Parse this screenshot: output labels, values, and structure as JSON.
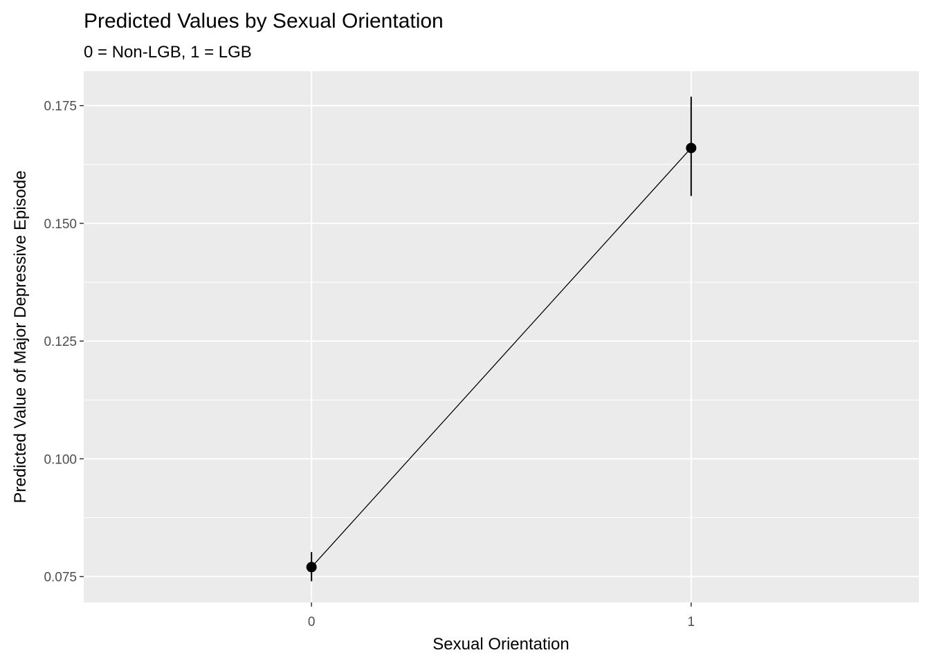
{
  "chart_data": {
    "type": "line",
    "title": "Predicted Values by Sexual Orientation",
    "subtitle": "0 = Non-LGB, 1 = LGB",
    "xlabel": "Sexual Orientation",
    "ylabel": "Predicted Value of Major Depressive Episode",
    "x_ticks": [
      "0",
      "1"
    ],
    "y_ticks": [
      "0.075",
      "0.100",
      "0.125",
      "0.150",
      "0.175"
    ],
    "xlim": [
      -0.6,
      1.6
    ],
    "ylim": [
      0.0695,
      0.1823
    ],
    "grid": true,
    "points": [
      {
        "x": 0,
        "y": 0.077,
        "ymin": 0.074,
        "ymax": 0.0802
      },
      {
        "x": 1,
        "y": 0.166,
        "ymin": 0.1558,
        "ymax": 0.1769
      }
    ],
    "colors": {
      "panel": "#ebebeb",
      "grid": "#ffffff",
      "mark": "#000000",
      "tick_label": "#4d4d4d"
    }
  }
}
